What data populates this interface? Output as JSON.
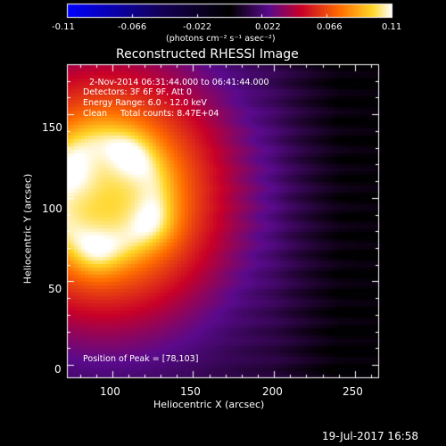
{
  "colorbar": {
    "ticks": [
      "-0.11",
      "-0.066",
      "-0.022",
      "0.022",
      "0.066",
      "0.11"
    ],
    "unit_label": "(photons cm⁻² s⁻¹ asec⁻²)",
    "range": [
      -0.11,
      0.11
    ]
  },
  "image": {
    "title": "Reconstructed RHESSI Image",
    "annotations": [
      "2-Nov-2014 06:31:44.000 to 06:41:44.000",
      "Detectors: 3F 6F 9F, Att 0",
      "Energy Range: 6.0 - 12.0 keV",
      "Clean     Total counts: 8.47E+04"
    ],
    "peak_label": "Position of Peak = [78,103]",
    "x_axis_label": "Heliocentric X (arcsec)",
    "y_axis_label": "Heliocentric Y (arcsec)",
    "x_ticks": [
      "100",
      "150",
      "200",
      "250"
    ],
    "y_ticks": [
      "0",
      "50",
      "100",
      "150"
    ],
    "x_range": [
      72,
      265
    ],
    "y_range": [
      -8,
      180
    ]
  },
  "footer": {
    "timestamp": "19-Jul-2017 16:58"
  }
}
